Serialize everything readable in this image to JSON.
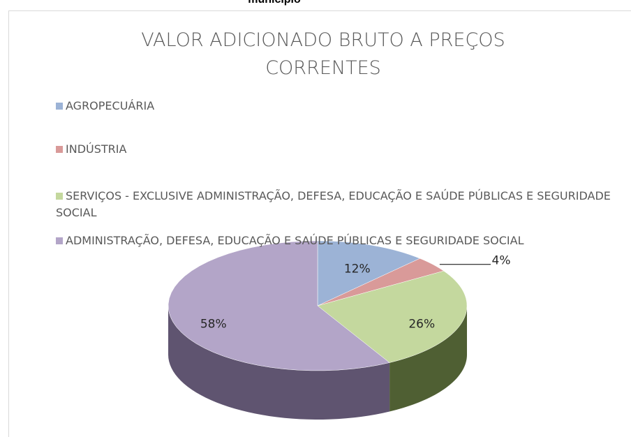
{
  "chart_data": {
    "type": "pie3d",
    "caption": "município",
    "title": "VALOR ADICIONADO BRUTO A PREÇOS CORRENTES",
    "categories": [
      "AGROPECUÁRIA",
      "INDÚSTRIA",
      "SERVIÇOS - EXCLUSIVE ADMINISTRAÇÃO, DEFESA, EDUCAÇÃO E SAÚDE PÚBLICAS E SEGURIDADE SOCIAL",
      "ADMINISTRAÇÃO, DEFESA, EDUCAÇÃO E SAÚDE PÚBLICAS E SEGURIDADE SOCIAL"
    ],
    "values": [
      12,
      4,
      26,
      58
    ],
    "value_labels": [
      "12%",
      "4%",
      "26%",
      "58%"
    ],
    "colors": [
      "#9cb3d6",
      "#d99a99",
      "#c4d89e",
      "#b3a5c8"
    ],
    "side_colors": [
      "#5f7397",
      "#8f5655",
      "#4f5f33",
      "#5f5470"
    ],
    "legend": "top"
  }
}
